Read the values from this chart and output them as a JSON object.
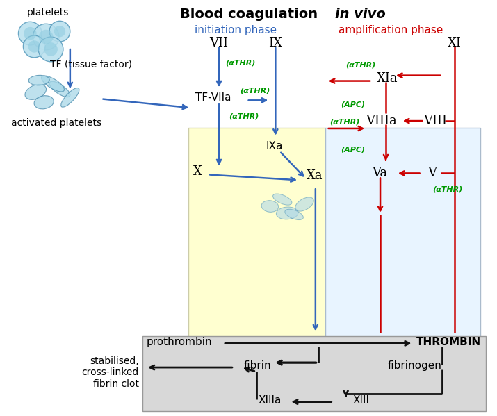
{
  "title_normal": "Blood coagulation ",
  "title_italic": "in vivo",
  "title_fontsize": 14,
  "bg_color": "#ffffff",
  "initiation_bg": "#ffffd0",
  "amplification_bg": "#e8f4ff",
  "bottom_bg": "#d8d8d8",
  "blue_color": "#3366bb",
  "red_color": "#cc0000",
  "green_color": "#009900",
  "black_color": "#111111",
  "initiation_phase": "initiation phase",
  "amplification_phase": "amplification phase",
  "platelets_label": "platelets",
  "activated_platelets_label": "activated platelets",
  "tf_label": "TF (tissue factor)",
  "VII_label": "VII",
  "IX_label": "IX",
  "alphaTHR_label": "(αTHR)",
  "TFVIIa_label": "TF-VIIa",
  "IXa_label": "IXa",
  "X_label": "X",
  "Xa_label": "Xa",
  "XIa_label": "XIa",
  "XI_label": "XI",
  "APC_label": "(APC)",
  "VIIIa_label": "VIIIa",
  "VIII_label": "VIII",
  "Va_label": "Va",
  "V_label": "V",
  "prothrombin_label": "prothrombin",
  "THROMBIN_label": "THROMBIN",
  "fibrin_label": "fibrin",
  "fibrinogen_label": "fibrinogen",
  "XIIIa_label": "XIIIa",
  "XIII_label": "XIII",
  "stabilised_label": "stabilised,\ncross-linked\nfibrin clot",
  "figsize": [
    7.15,
    5.99
  ],
  "dpi": 100
}
